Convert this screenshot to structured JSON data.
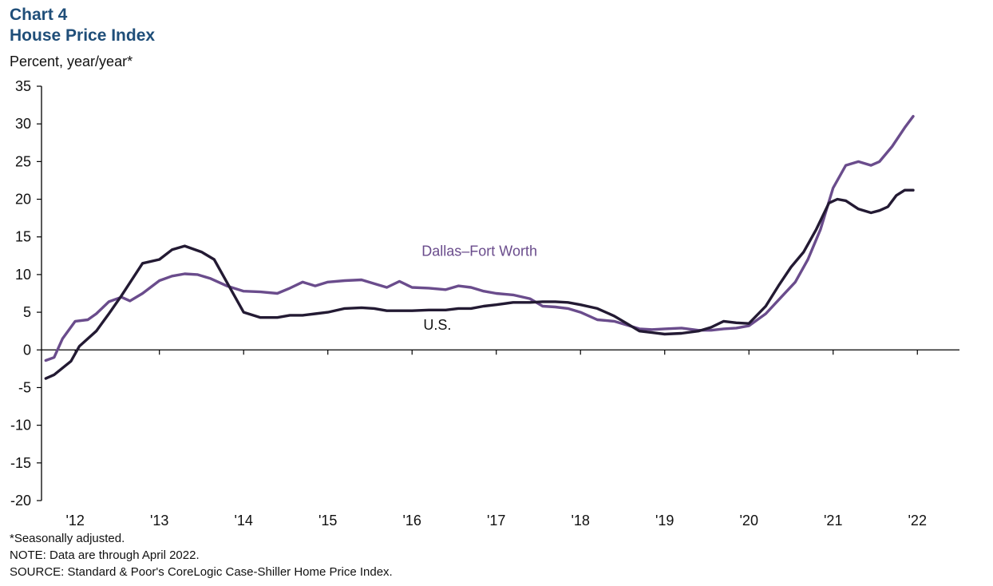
{
  "chart_data": {
    "type": "line",
    "title": "Chart 4",
    "subtitle": "House Price Index",
    "ylabel": "Percent, year/year*",
    "xlabel": "",
    "ylim": [
      -20,
      35
    ],
    "yticks": [
      35,
      30,
      25,
      20,
      15,
      10,
      5,
      0,
      -5,
      -10,
      -15,
      -20
    ],
    "x_tick_labels": [
      "'12",
      "'13",
      "'14",
      "'15",
      "'16",
      "'17",
      "'18",
      "'19",
      "'20",
      "'21",
      "'22"
    ],
    "x_start_year": 2011.6,
    "x_end_year": 2022.5,
    "grid": false,
    "legend": "inline labels",
    "series": [
      {
        "name": "Dallas–Fort Worth",
        "color": "#6a4c8c",
        "x": [
          2011.65,
          2011.75,
          2011.85,
          2012.0,
          2012.15,
          2012.25,
          2012.4,
          2012.55,
          2012.65,
          2012.8,
          2013.0,
          2013.15,
          2013.3,
          2013.45,
          2013.6,
          2013.8,
          2014.0,
          2014.2,
          2014.4,
          2014.55,
          2014.7,
          2014.85,
          2015.0,
          2015.2,
          2015.4,
          2015.55,
          2015.7,
          2015.85,
          2016.0,
          2016.2,
          2016.4,
          2016.55,
          2016.7,
          2016.85,
          2017.0,
          2017.2,
          2017.4,
          2017.55,
          2017.7,
          2017.85,
          2018.0,
          2018.2,
          2018.4,
          2018.55,
          2018.7,
          2018.85,
          2019.0,
          2019.2,
          2019.4,
          2019.55,
          2019.7,
          2019.85,
          2020.0,
          2020.2,
          2020.4,
          2020.55,
          2020.7,
          2020.85,
          2021.0,
          2021.15,
          2021.3,
          2021.45,
          2021.55,
          2021.7,
          2021.85,
          2021.95
        ],
        "values": [
          -1.4,
          -1.0,
          1.5,
          3.8,
          4.0,
          4.8,
          6.4,
          7.0,
          6.5,
          7.5,
          9.2,
          9.8,
          10.1,
          10.0,
          9.5,
          8.5,
          7.8,
          7.7,
          7.5,
          8.2,
          9.0,
          8.5,
          9.0,
          9.2,
          9.3,
          8.8,
          8.3,
          9.1,
          8.3,
          8.2,
          8.0,
          8.5,
          8.3,
          7.8,
          7.5,
          7.3,
          6.8,
          5.8,
          5.7,
          5.5,
          5.0,
          4.0,
          3.8,
          3.3,
          2.8,
          2.7,
          2.8,
          2.9,
          2.6,
          2.6,
          2.8,
          2.9,
          3.2,
          4.8,
          7.2,
          9.0,
          12.0,
          16.0,
          21.5,
          24.5,
          25.0,
          24.5,
          25.0,
          27.0,
          29.5,
          31.0
        ]
      },
      {
        "name": "U.S.",
        "color": "#231a33",
        "x": [
          2011.65,
          2011.75,
          2011.95,
          2012.05,
          2012.25,
          2012.4,
          2012.55,
          2012.8,
          2013.0,
          2013.15,
          2013.3,
          2013.5,
          2013.65,
          2013.8,
          2014.0,
          2014.2,
          2014.4,
          2014.55,
          2014.7,
          2014.85,
          2015.0,
          2015.2,
          2015.4,
          2015.55,
          2015.7,
          2015.85,
          2016.0,
          2016.2,
          2016.4,
          2016.55,
          2016.7,
          2016.85,
          2017.0,
          2017.2,
          2017.4,
          2017.55,
          2017.7,
          2017.85,
          2018.0,
          2018.2,
          2018.4,
          2018.55,
          2018.7,
          2018.85,
          2019.0,
          2019.2,
          2019.4,
          2019.55,
          2019.7,
          2019.85,
          2020.0,
          2020.2,
          2020.35,
          2020.5,
          2020.65,
          2020.8,
          2020.95,
          2021.05,
          2021.15,
          2021.3,
          2021.45,
          2021.55,
          2021.65,
          2021.75,
          2021.85,
          2021.95
        ],
        "values": [
          -3.8,
          -3.3,
          -1.5,
          0.5,
          2.5,
          4.8,
          7.2,
          11.5,
          12.0,
          13.3,
          13.8,
          13.0,
          12.0,
          9.0,
          5.0,
          4.3,
          4.3,
          4.6,
          4.6,
          4.8,
          5.0,
          5.5,
          5.6,
          5.5,
          5.2,
          5.2,
          5.2,
          5.3,
          5.3,
          5.5,
          5.5,
          5.8,
          6.0,
          6.3,
          6.3,
          6.4,
          6.4,
          6.3,
          6.0,
          5.5,
          4.5,
          3.5,
          2.5,
          2.3,
          2.1,
          2.2,
          2.5,
          3.0,
          3.8,
          3.6,
          3.5,
          5.8,
          8.5,
          11.0,
          13.0,
          16.0,
          19.5,
          20.0,
          19.8,
          18.7,
          18.2,
          18.5,
          19.0,
          20.5,
          21.2,
          21.2
        ]
      }
    ],
    "annotations": [
      {
        "series": "Dallas–Fort Worth",
        "text": "Dallas–Fort Worth",
        "x": 2016.8,
        "y": 12.5
      },
      {
        "series": "U.S.",
        "text": "U.S.",
        "x": 2016.3,
        "y": 2.7
      }
    ]
  },
  "notes": [
    "*Seasonally adjusted.",
    "NOTE: Data are through April 2022.",
    "SOURCE: Standard & Poor's CoreLogic Case-Shiller Home Price Index."
  ]
}
